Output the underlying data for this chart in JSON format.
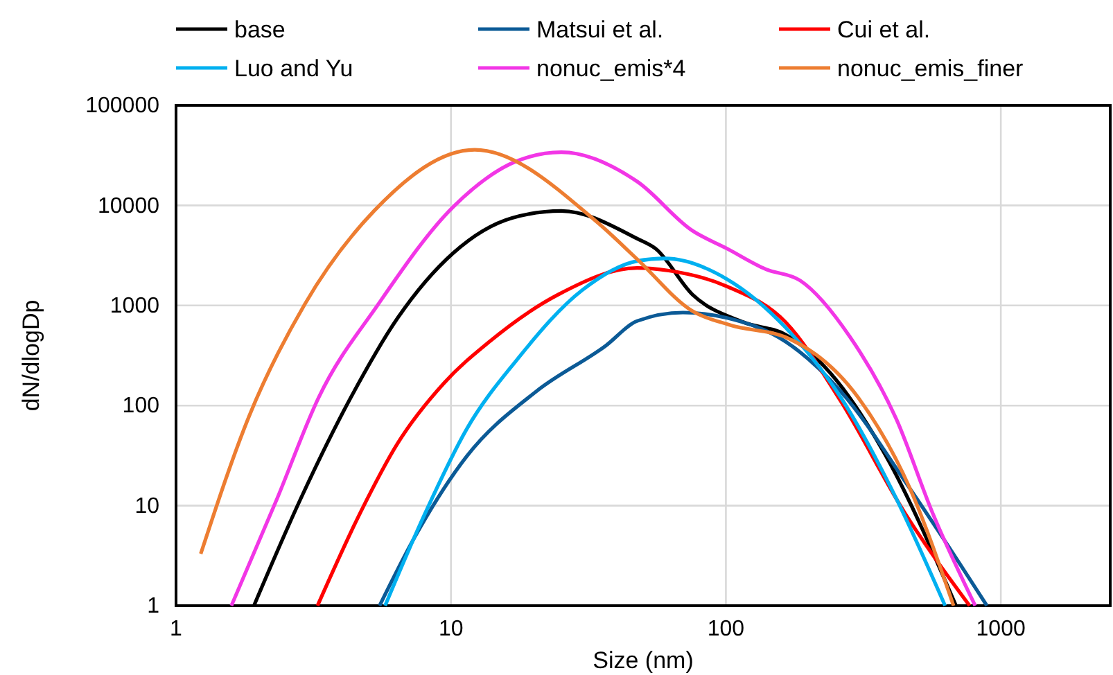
{
  "chart_data": {
    "type": "line",
    "xlabel": "Size (nm)",
    "ylabel": "dN/dlogDp",
    "log": "xy",
    "xlim": [
      1,
      2500
    ],
    "xticks": [
      1,
      10,
      100,
      1000
    ],
    "ylim": [
      1,
      100000
    ],
    "yticks": [
      1,
      10,
      100,
      1000,
      10000,
      100000
    ],
    "grid": true,
    "legend": "top",
    "line_style": "solid",
    "marker": "none",
    "series": [
      {
        "name": "base",
        "color": "#000000",
        "x": [
          1.92,
          2.84,
          4.32,
          6.4,
          10.2,
          16.7,
          25.2,
          47.6,
          55.5,
          75.5,
          116,
          165,
          241,
          383,
          687
        ],
        "values": [
          1,
          11.7,
          120,
          750,
          3350,
          7500,
          8800,
          4650,
          3700,
          1290,
          680,
          510,
          208,
          31,
          1
        ]
      },
      {
        "name": "Matsui et al.",
        "color": "#0b5a96",
        "x": [
          5.5,
          7.4,
          11.4,
          20.4,
          36.5,
          47.6,
          69.8,
          101,
          165,
          262,
          468,
          890
        ],
        "values": [
          1,
          4.9,
          31,
          138,
          395,
          700,
          850,
          750,
          435,
          138,
          14.7,
          1
        ]
      },
      {
        "name": "Cui et al.",
        "color": "#ff0000",
        "x": [
          3.27,
          4.68,
          6.4,
          9.4,
          13.8,
          24.6,
          47.6,
          62,
          101,
          165,
          262,
          447,
          770
        ],
        "values": [
          1,
          8.5,
          42,
          166,
          435,
          1290,
          2370,
          2230,
          1550,
          680,
          110,
          8.5,
          1
        ]
      },
      {
        "name": "Luo and Yu",
        "color": "#00b0f0",
        "x": [
          5.76,
          8.07,
          11.4,
          17.4,
          30,
          47.6,
          60,
          101,
          165,
          262,
          417,
          627
        ],
        "values": [
          1,
          8.5,
          58,
          288,
          1420,
          2780,
          2950,
          1830,
          600,
          120,
          11.7,
          1
        ]
      },
      {
        "name": "nonuc_emis*4",
        "color": "#f236e6",
        "x": [
          1.59,
          2.33,
          3.3,
          5.44,
          10.2,
          17.4,
          25.2,
          47.6,
          75.5,
          101,
          140,
          186,
          282,
          417,
          564,
          807
        ],
        "values": [
          1,
          11.7,
          120,
          1030,
          9700,
          27800,
          34000,
          17300,
          5600,
          3700,
          2300,
          1780,
          490,
          73,
          8.5,
          1
        ]
      },
      {
        "name": "nonuc_emis_finer",
        "color": "#ed7d31",
        "x": [
          1.23,
          1.85,
          2.94,
          5.25,
          12.2,
          33.6,
          47.6,
          75.5,
          103,
          170,
          303,
          468,
          673
        ],
        "values": [
          3.3,
          80,
          1030,
          8800,
          36000,
          7000,
          2900,
          880,
          640,
          465,
          120,
          14.7,
          1
        ]
      }
    ]
  }
}
